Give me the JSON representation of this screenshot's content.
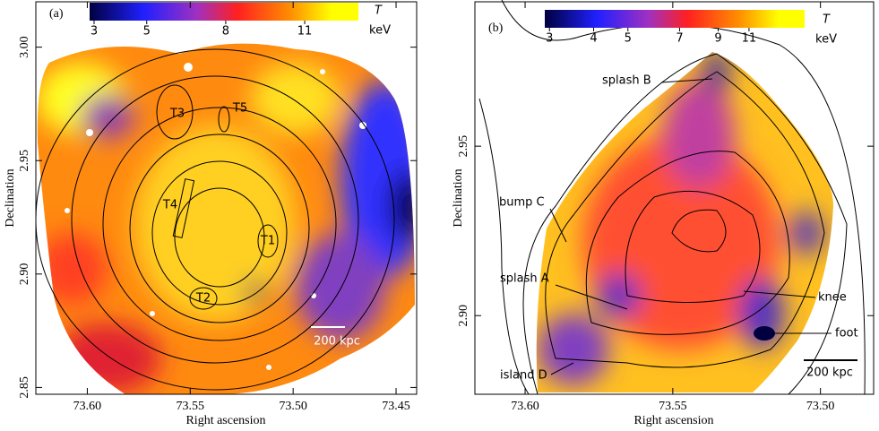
{
  "panels": [
    {
      "label": "(a)",
      "xlabel": "Right ascension",
      "ylabel": "Declination",
      "xlim": [
        73.625,
        73.44
      ],
      "ylim": [
        2.847,
        3.02
      ],
      "xticks": [
        {
          "value": 73.6,
          "label": "73.60"
        },
        {
          "value": 73.55,
          "label": "73.55"
        },
        {
          "value": 73.5,
          "label": "73.50"
        },
        {
          "value": 73.45,
          "label": "73.45"
        }
      ],
      "yticks": [
        2.85,
        {
          "value": 2.9,
          "label": "2.90"
        },
        2.95,
        {
          "value": 3.0,
          "label": "3.00"
        }
      ],
      "colorbar": {
        "symbol": "T",
        "unit": "keV",
        "scale": "linear",
        "lim": [
          2.83,
          13.04
        ],
        "ticks": [
          3,
          5,
          8,
          11
        ]
      },
      "regions": [
        "T1",
        "T2",
        "T3",
        "T4",
        "T5"
      ],
      "scalebar": "200 kpc"
    },
    {
      "label": "(b)",
      "xlabel": "Right ascension",
      "ylabel": "Declination",
      "xlim": [
        73.617,
        73.482
      ],
      "ylim": [
        2.8768,
        2.9926
      ],
      "xticks": [
        {
          "value": 73.6,
          "label": "73.60"
        },
        {
          "value": 73.55,
          "label": "73.55"
        },
        {
          "value": 73.5,
          "label": "73.50"
        }
      ],
      "yticks": [
        {
          "value": 2.9,
          "label": "2.90"
        },
        2.95
      ],
      "colorbar": {
        "symbol": "T",
        "unit": "keV",
        "scale": "log",
        "lim": [
          2.91,
          15.8
        ],
        "ticks": [
          3,
          4,
          5,
          7,
          9,
          11
        ]
      },
      "annotations": [
        "splash B",
        "bump C",
        "splash A",
        "knee",
        "foot",
        "island D"
      ],
      "scalebar": "200 kpc"
    }
  ]
}
